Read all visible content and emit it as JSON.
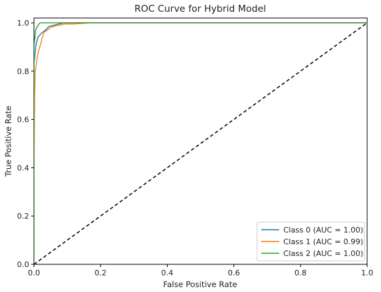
{
  "chart_data": {
    "type": "line",
    "title": "ROC Curve for Hybrid Model",
    "xlabel": "False Positive Rate",
    "ylabel": "True Positive Rate",
    "xlim": [
      0,
      1.0
    ],
    "ylim": [
      0,
      1.02
    ],
    "xticks": [
      "0.0",
      "0.2",
      "0.4",
      "0.6",
      "0.8",
      "1.0"
    ],
    "yticks": [
      "0.0",
      "0.2",
      "0.4",
      "0.6",
      "0.8",
      "1.0"
    ],
    "grid": false,
    "legend_position": "lower-right",
    "series": [
      {
        "name": "Class 0 (AUC = 1.00)",
        "color": "#1f77b4",
        "x": [
          0,
          0,
          0.003,
          0.005,
          0.008,
          0.012,
          0.018,
          0.025,
          0.035,
          0.045,
          0.06,
          0.075,
          0.09,
          0.11,
          0.13,
          1.0
        ],
        "y": [
          0,
          0.83,
          0.87,
          0.9,
          0.92,
          0.94,
          0.95,
          0.96,
          0.97,
          0.985,
          0.99,
          0.995,
          1.0,
          1.0,
          1.0,
          1.0
        ]
      },
      {
        "name": "Class 1 (AUC = 0.99)",
        "color": "#ff7f0e",
        "x": [
          0,
          0,
          0.002,
          0.004,
          0.007,
          0.01,
          0.015,
          0.02,
          0.025,
          0.03,
          0.04,
          0.05,
          0.06,
          0.07,
          0.08,
          0.09,
          0.1,
          0.12,
          0.17,
          1.0
        ],
        "y": [
          0,
          0.35,
          0.7,
          0.8,
          0.83,
          0.86,
          0.89,
          0.91,
          0.94,
          0.96,
          0.97,
          0.98,
          0.985,
          0.99,
          0.99,
          0.995,
          0.995,
          0.995,
          1.0,
          1.0
        ],
        "label": "Class 1 (AUC = 0.99)"
      },
      {
        "name": "Class 2 (AUC = 1.00)",
        "color": "#2ca02c",
        "x": [
          0,
          0,
          0.005,
          0.01,
          0.015,
          0.02,
          0.04,
          1.0
        ],
        "y": [
          0,
          0.9,
          0.97,
          0.985,
          0.995,
          1.0,
          1.0,
          1.0
        ]
      }
    ],
    "reference_line": {
      "x": [
        0,
        1
      ],
      "y": [
        0,
        1
      ],
      "style": "dashed",
      "color": "#000000"
    }
  }
}
